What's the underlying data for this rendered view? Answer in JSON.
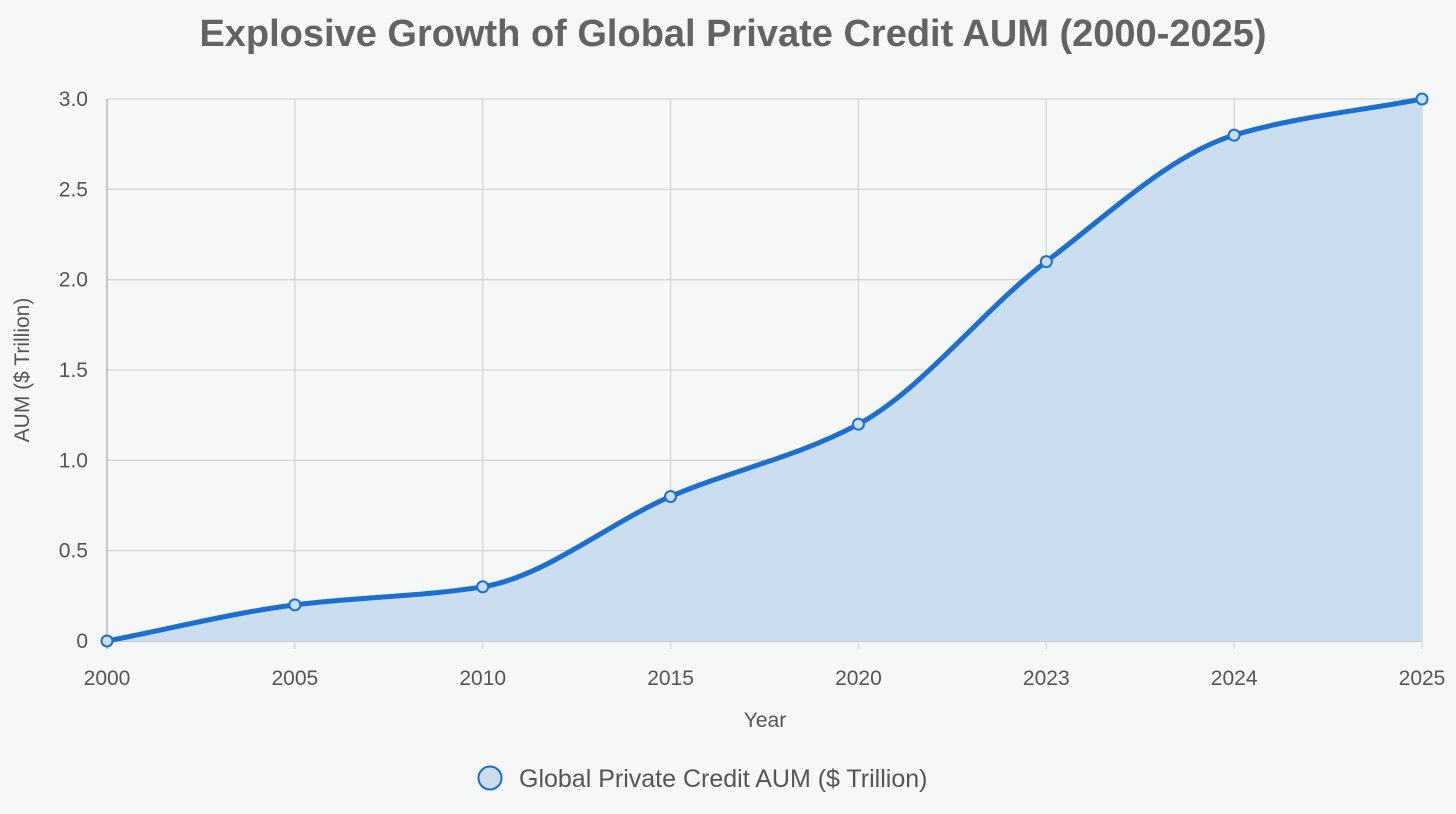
{
  "chart_data": {
    "type": "area",
    "title": "Explosive Growth of Global Private Credit AUM (2000-2025)",
    "xlabel": "Year",
    "ylabel": "AUM ($ Trillion)",
    "categories": [
      "2000",
      "2005",
      "2010",
      "2015",
      "2020",
      "2023",
      "2024",
      "2025"
    ],
    "series": [
      {
        "name": "Global Private Credit AUM ($ Trillion)",
        "values": [
          0,
          0.2,
          0.3,
          0.8,
          1.2,
          2.1,
          2.8,
          3.0
        ],
        "color": "#1a6fd0",
        "fill": "#cadeef"
      }
    ],
    "ylim": [
      0,
      3.0
    ],
    "yticks": [
      0,
      0.5,
      1.0,
      1.5,
      2.0,
      2.5,
      3.0
    ],
    "ytick_labels": [
      "0",
      "0.5",
      "1.0",
      "1.5",
      "2.0",
      "2.5",
      "3.0"
    ],
    "grid": true,
    "legend_position": "bottom"
  }
}
